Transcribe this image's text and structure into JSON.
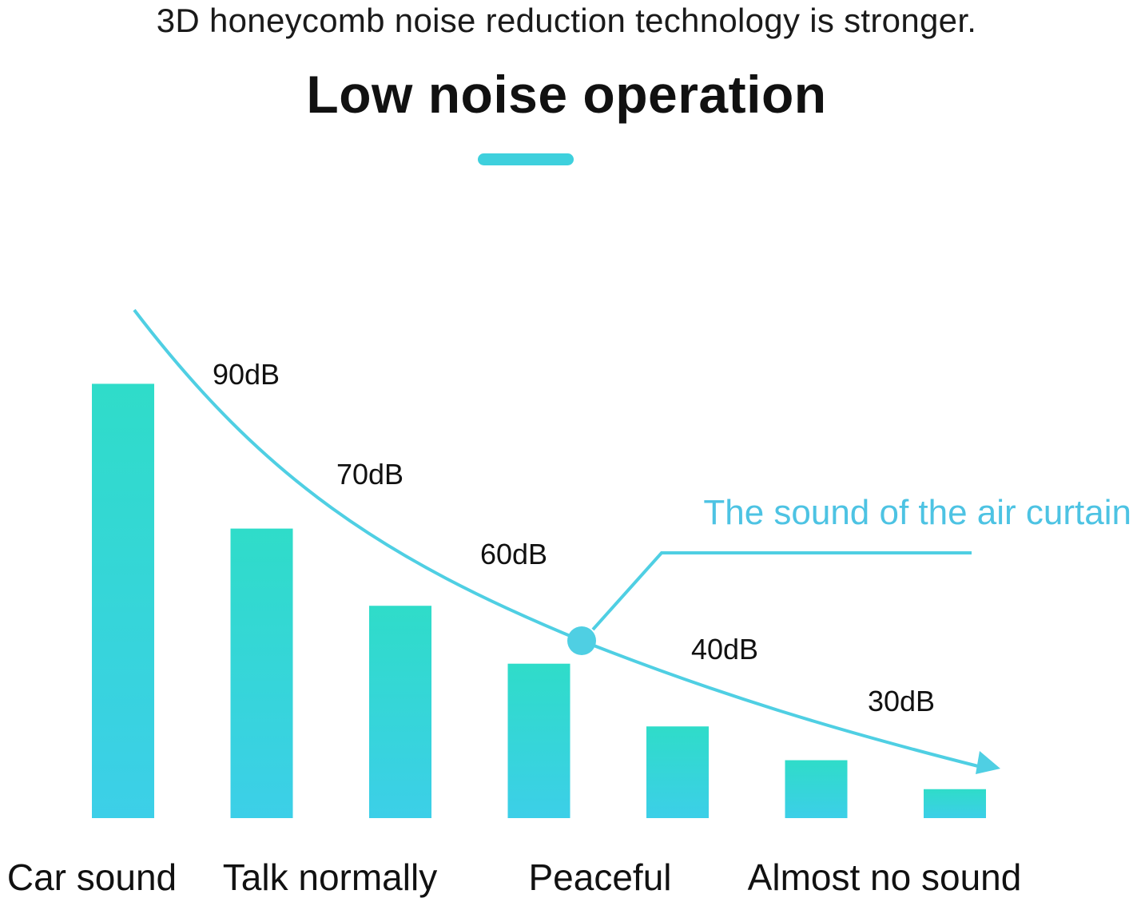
{
  "header": {
    "subtitle": "3D honeycomb noise reduction technology is stronger.",
    "title": "Low noise operation"
  },
  "colors": {
    "accent": "#3ed0dd",
    "bar_top": "#2fdcc9",
    "bar_bottom": "#3ccfe8",
    "curve": "#4fcfe3",
    "callout_text": "#4dc3e3",
    "text": "#111111"
  },
  "chart_data": {
    "type": "bar",
    "title": "Low noise operation",
    "categories": [
      "",
      "",
      "",
      "",
      "",
      "",
      ""
    ],
    "values": [
      90,
      60,
      44,
      32,
      19,
      12,
      6
    ],
    "ylim": [
      0,
      100
    ],
    "grid": false,
    "legend": "none",
    "bottom_labels": [
      "Car sound",
      "Talk normally",
      "Peaceful",
      "Almost no sound"
    ],
    "curve": {
      "type": "line",
      "labels": [
        "90dB",
        "70dB",
        "60dB",
        "40dB",
        "30dB"
      ],
      "arrow": true
    },
    "annotation": {
      "text": "The sound of the air curtain"
    }
  }
}
